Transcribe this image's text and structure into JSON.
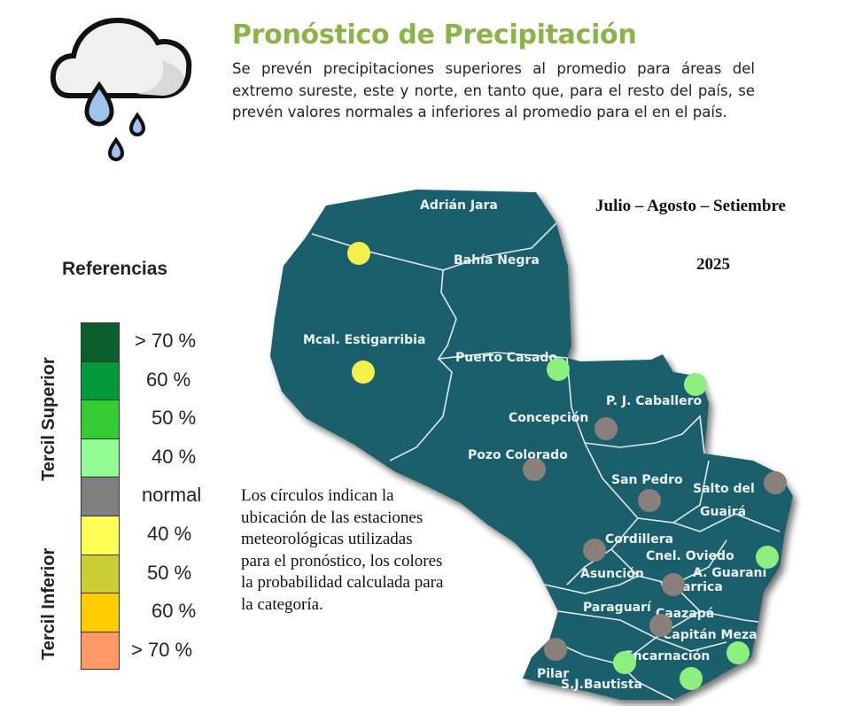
{
  "header": {
    "title": "Pronóstico de Precipitación",
    "description": "Se prevén precipitaciones superiores al promedio para áreas del extremo sureste, este y norte, en tanto que, para el resto del país, se prevén valores normales a inferiores al promedio para el  en el país.",
    "icon": "rain-cloud-icon"
  },
  "period": "Julio – Agosto – Setiembre",
  "year": "2025",
  "legend": {
    "title": "Referencias",
    "upper_label": "Tercil Superior",
    "lower_label": "Tercil Inferior",
    "items": [
      {
        "label": "> 70 %",
        "color": "#0a5e2e"
      },
      {
        "label": "60 %",
        "color": "#009a3a"
      },
      {
        "label": "50 %",
        "color": "#33cc33"
      },
      {
        "label": "40 %",
        "color": "#93fb93"
      },
      {
        "label": "normal",
        "color": "#808080"
      },
      {
        "label": "40  %",
        "color": "#ffff55"
      },
      {
        "label": "50  %",
        "color": "#cccc33"
      },
      {
        "label": "60 %",
        "color": "#ffcc00"
      },
      {
        "label": "> 70 %",
        "color": "#ff9966"
      }
    ]
  },
  "note": "Los círculos indican la ubicación de las estaciones meteorológicas utilizadas para el pronóstico, los colores la probabilidad calculada para la categoría.",
  "map": {
    "fill": "#1f5e6c",
    "category_colors": {
      "inferior_40": "#f5f04a",
      "superior_40": "#8cef7e",
      "normal": "#8a807b"
    },
    "labels": [
      "Adrián Jara",
      "Bahía Negra",
      "Mcal. Estigarribia",
      "Puerto Casado",
      "P. J. Caballero",
      "Concepción",
      "Pozo Colorado",
      "San Pedro",
      "Salto del",
      "Guairá",
      "Cordillera",
      "Cnel. Oviedo",
      "A. Guaraní",
      "Asunción",
      "Villarrica",
      "Paraguarí",
      "Caazapá",
      "Capitán Meza",
      "Encarnación",
      "Pilar",
      "S.J.Bautista"
    ],
    "stations": [
      {
        "category": "inferior_40"
      },
      {
        "category": "inferior_40"
      },
      {
        "category": "superior_40"
      },
      {
        "category": "superior_40"
      },
      {
        "category": "superior_40"
      },
      {
        "category": "superior_40"
      },
      {
        "category": "superior_40"
      },
      {
        "category": "superior_40"
      },
      {
        "category": "normal"
      },
      {
        "category": "normal"
      },
      {
        "category": "normal"
      },
      {
        "category": "normal"
      },
      {
        "category": "normal"
      },
      {
        "category": "normal"
      },
      {
        "category": "normal"
      },
      {
        "category": "normal"
      }
    ]
  }
}
